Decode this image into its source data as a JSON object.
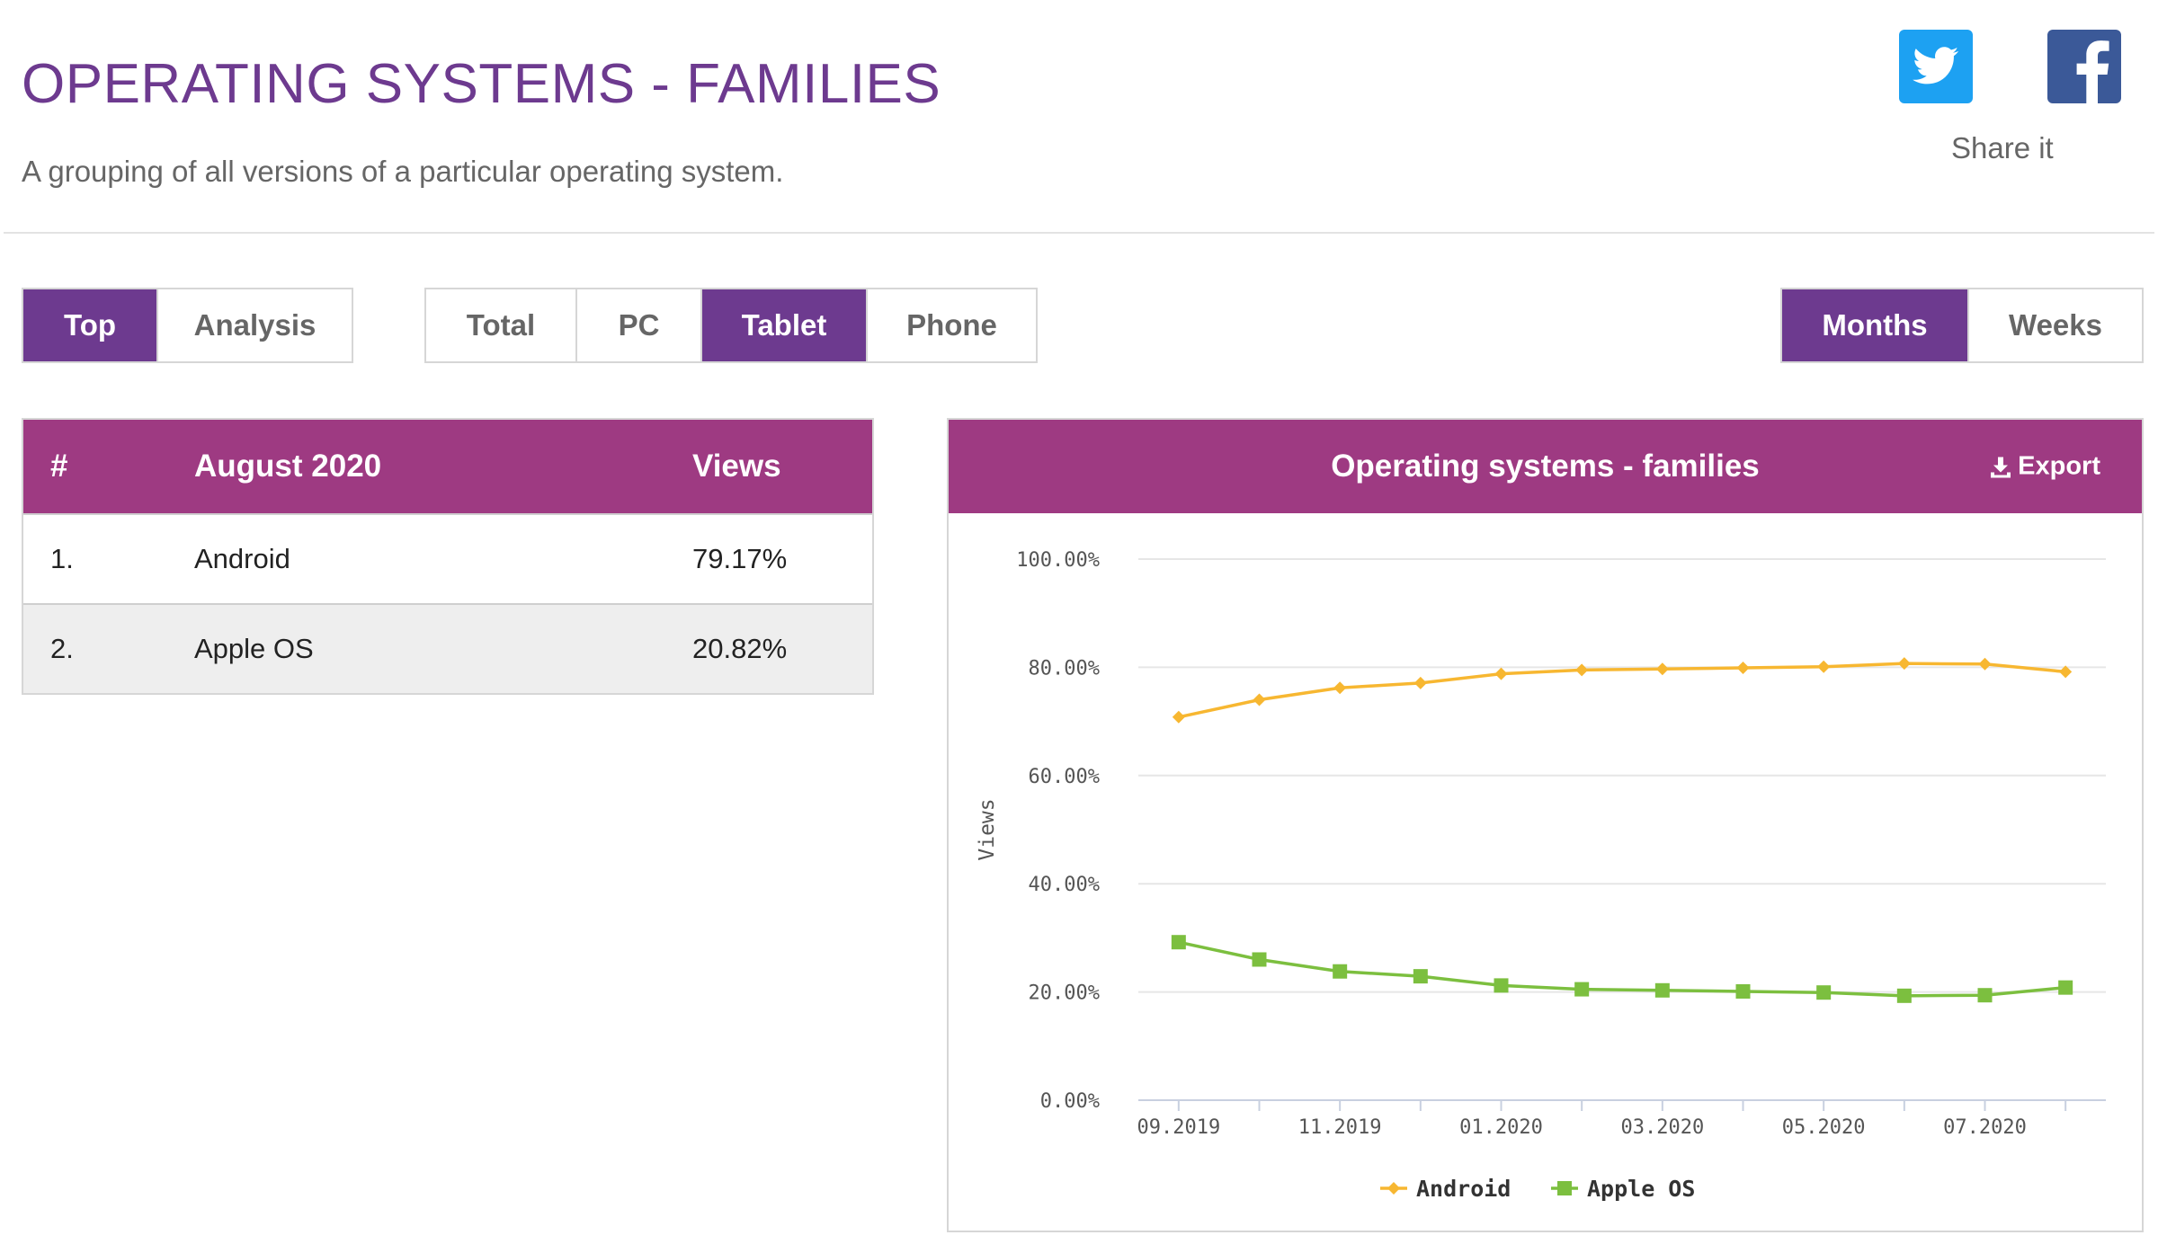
{
  "header": {
    "title": "OPERATING SYSTEMS - FAMILIES",
    "subtitle": "A grouping of all versions of a particular operating system.",
    "share_label": "Share it"
  },
  "share": {
    "twitter_icon": "twitter-icon",
    "facebook_icon": "facebook-icon",
    "twitter_color": "#1da1f2",
    "facebook_color": "#3b5998"
  },
  "view_tabs": [
    {
      "label": "Top",
      "active": true
    },
    {
      "label": "Analysis",
      "active": false
    }
  ],
  "device_tabs": [
    {
      "label": "Total",
      "active": false
    },
    {
      "label": "PC",
      "active": false
    },
    {
      "label": "Tablet",
      "active": true
    },
    {
      "label": "Phone",
      "active": false
    }
  ],
  "period_tabs": [
    {
      "label": "Months",
      "active": true
    },
    {
      "label": "Weeks",
      "active": false
    }
  ],
  "ranking": {
    "headers": {
      "rank": "#",
      "name": "August 2020",
      "views": "Views"
    },
    "rows": [
      {
        "rank": "1.",
        "name": "Android",
        "views": "79.17%"
      },
      {
        "rank": "2.",
        "name": "Apple OS",
        "views": "20.82%"
      }
    ]
  },
  "chart_panel": {
    "title": "Operating systems - families",
    "export_label": "Export",
    "export_icon": "download-icon"
  },
  "colors": {
    "accent": "#6d3a8f",
    "panel_header": "#9e3a82",
    "android": "#f7b731",
    "apple": "#7cbf3f"
  },
  "chart_data": {
    "type": "line",
    "title": "",
    "xlabel": "",
    "ylabel": "Views",
    "ylim": [
      0,
      100
    ],
    "yticks": [
      "0.00%",
      "20.00%",
      "40.00%",
      "60.00%",
      "80.00%",
      "100.00%"
    ],
    "categories": [
      "09.2019",
      "10.2019",
      "11.2019",
      "12.2019",
      "01.2020",
      "02.2020",
      "03.2020",
      "04.2020",
      "05.2020",
      "06.2020",
      "07.2020",
      "08.2020"
    ],
    "xtick_labels": [
      "09.2019",
      "11.2019",
      "01.2020",
      "03.2020",
      "05.2020",
      "07.2020"
    ],
    "series": [
      {
        "name": "Android",
        "marker": "diamond",
        "color": "#f7b731",
        "values": [
          70.8,
          74.0,
          76.2,
          77.1,
          78.8,
          79.5,
          79.7,
          79.9,
          80.1,
          80.7,
          80.6,
          79.17
        ]
      },
      {
        "name": "Apple OS",
        "marker": "square",
        "color": "#7cbf3f",
        "values": [
          29.2,
          26.0,
          23.8,
          22.9,
          21.2,
          20.5,
          20.3,
          20.1,
          19.9,
          19.3,
          19.4,
          20.82
        ]
      }
    ],
    "grid": true,
    "legend": "bottom-center"
  }
}
